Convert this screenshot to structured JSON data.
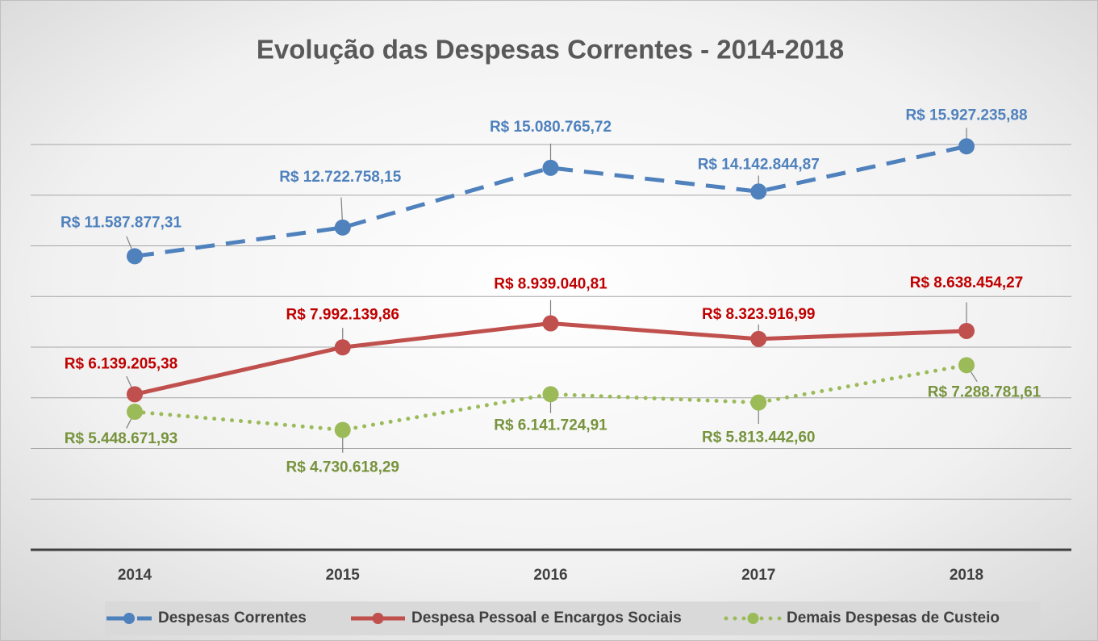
{
  "chart_data": {
    "type": "line",
    "title": "Evolução das Despesas Correntes -  2014-2018",
    "categories": [
      "2014",
      "2015",
      "2016",
      "2017",
      "2018"
    ],
    "ylim": [
      0,
      16000000
    ],
    "yticks": [
      0,
      2000000,
      4000000,
      6000000,
      8000000,
      10000000,
      12000000,
      14000000,
      16000000
    ],
    "grid": true,
    "legend": "bottom",
    "series": [
      {
        "name": "Despesas Correntes",
        "color": "#4f81bd",
        "label_color": "#4f81bd",
        "dash": "dashed",
        "values": [
          11587877.31,
          12722758.15,
          15080765.72,
          14142844.87,
          15927235.88
        ],
        "value_labels": [
          "R$ 11.587.877,31",
          "R$ 12.722.758,15",
          "R$ 15.080.765,72",
          "R$ 14.142.844,87",
          "R$ 15.927.235,88"
        ]
      },
      {
        "name": "Despesa Pessoal e Encargos Sociais",
        "color": "#c0504d",
        "label_color": "#c00000",
        "dash": "solid",
        "values": [
          6139205.38,
          7992139.86,
          8939040.81,
          8323916.99,
          8638454.27
        ],
        "value_labels": [
          "R$ 6.139.205,38",
          "R$ 7.992.139,86",
          "R$ 8.939.040,81",
          "R$ 8.323.916,99",
          "R$ 8.638.454,27"
        ]
      },
      {
        "name": "Demais Despesas de Custeio",
        "color": "#9bbb59",
        "label_color": "#77933c",
        "dash": "dotted",
        "values": [
          5448671.93,
          4730618.29,
          6141724.91,
          5813442.6,
          7288781.61
        ],
        "value_labels": [
          "R$ 5.448.671,93",
          "R$ 4.730.618,29",
          "R$ 6.141.724,91",
          "R$ 5.813.442,60",
          "R$ 7.288.781,61"
        ]
      }
    ]
  }
}
